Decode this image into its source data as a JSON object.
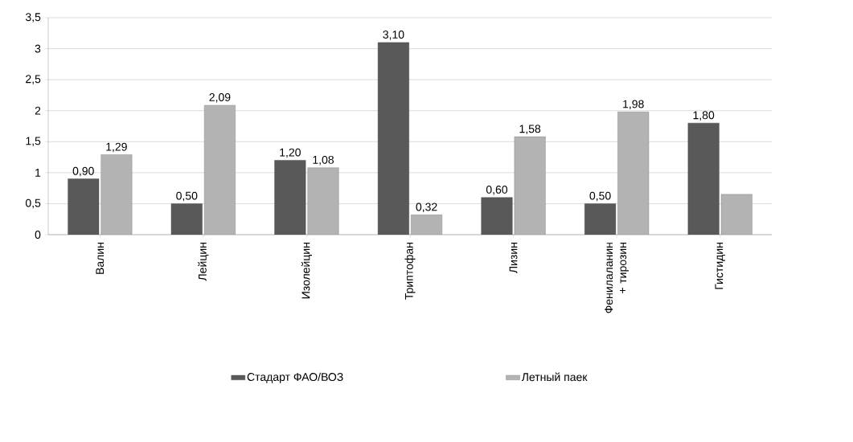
{
  "chart_data": {
    "type": "bar",
    "categories": [
      "Валин",
      "Лейцин",
      "Изолейцин",
      "Триптофан",
      "Лизин",
      "Фенилаланин + тирозин",
      "Гистидин"
    ],
    "series": [
      {
        "name": "Стадарт ФАО/ВОЗ",
        "color": "#595959",
        "values": [
          0.9,
          0.5,
          1.2,
          3.1,
          0.6,
          0.5,
          1.8
        ],
        "value_labels": [
          "0,90",
          "0,50",
          "1,20",
          "3,10",
          "0,60",
          "0,50",
          "1,80"
        ]
      },
      {
        "name": "Летный паек",
        "color": "#b3b3b3",
        "values": [
          1.29,
          2.09,
          1.08,
          0.32,
          1.58,
          1.98,
          0.65
        ],
        "value_labels": [
          "1,29",
          "2,09",
          "1,08",
          "0,32",
          "1,58",
          "1,98",
          null
        ]
      }
    ],
    "ylim": [
      0,
      3.5
    ],
    "yticks": [
      0,
      {
        "value": 0.5,
        "label": "0,5"
      },
      1,
      {
        "value": 1.5,
        "label": "1,5"
      },
      2,
      {
        "value": 2.5,
        "label": "2,5"
      },
      3,
      {
        "value": 3.5,
        "label": "3,5"
      }
    ],
    "grid": "y",
    "legend": "bottom"
  }
}
